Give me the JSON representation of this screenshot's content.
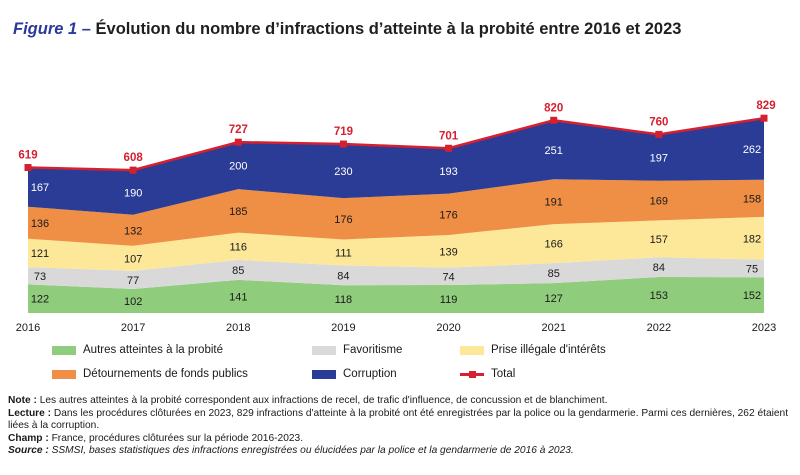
{
  "figure": {
    "label": "Figure 1 –",
    "title": "Évolution du nombre d’infractions d’atteinte à la probité entre 2016 et 2023"
  },
  "chart_data": {
    "type": "area",
    "stacked": true,
    "x": [
      "2016",
      "2017",
      "2018",
      "2019",
      "2020",
      "2021",
      "2022",
      "2023"
    ],
    "series": [
      {
        "name": "Autres atteintes à la probité",
        "color": "#8fcc7c",
        "values": [
          122,
          102,
          141,
          118,
          119,
          127,
          153,
          152
        ]
      },
      {
        "name": "Favoritisme",
        "color": "#d9d9d9",
        "values": [
          73,
          77,
          85,
          84,
          74,
          85,
          84,
          75
        ]
      },
      {
        "name": "Prise illégale d'intérêts",
        "color": "#fde89a",
        "values": [
          121,
          107,
          116,
          111,
          139,
          166,
          157,
          182
        ]
      },
      {
        "name": "Détournements de fonds publics",
        "color": "#ee8f45",
        "values": [
          136,
          132,
          185,
          176,
          176,
          191,
          169,
          158
        ]
      },
      {
        "name": "Corruption",
        "color": "#2b3c97",
        "values": [
          167,
          190,
          200,
          230,
          193,
          251,
          197,
          262
        ]
      }
    ],
    "total": {
      "name": "Total",
      "color": "#d6202f",
      "values": [
        619,
        608,
        727,
        719,
        701,
        820,
        760,
        829
      ]
    },
    "ylim": [
      0,
      900
    ],
    "legend_position": "bottom",
    "grid": false
  },
  "notes": {
    "note_label": "Note :",
    "note_text": " Les autres atteintes à la probité correspondent aux infractions de recel, de trafic d'influence, de concussion et de blanchiment.",
    "lecture_label": "Lecture :",
    "lecture_text": " Dans les procédures clôturées en 2023, 829 infractions d'atteinte à la probité ont été enregistrées par la police ou la gendarmerie. Parmi ces dernières, 262 étaient liées à la corruption.",
    "champ_label": "Champ :",
    "champ_text": " France, procédures clôturées sur la période 2016-2023.",
    "source_label": "Source :",
    "source_text": " SSMSI, bases statistiques des infractions enregistrées ou élucidées par la police et la gendarmerie de 2016 à 2023."
  }
}
